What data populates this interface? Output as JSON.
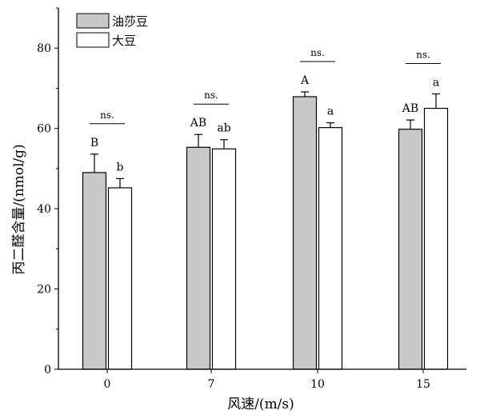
{
  "chart_data": {
    "type": "bar",
    "title": "",
    "xlabel": "风速/(m/s)",
    "ylabel": "丙二醛含量/(nmol/g)",
    "categories": [
      "0",
      "7",
      "10",
      "15"
    ],
    "ylim": [
      0,
      90
    ],
    "yticks": [
      0,
      20,
      40,
      60,
      80
    ],
    "grid": false,
    "legend_position": "top-left",
    "series": [
      {
        "name": "油莎豆",
        "color": "#c8c8c8",
        "values": [
          49.0,
          55.3,
          67.9,
          59.8
        ],
        "errors": [
          4.6,
          3.2,
          1.2,
          2.3
        ],
        "letters": [
          "B",
          "AB",
          "A",
          "AB"
        ]
      },
      {
        "name": "大豆",
        "color": "#ffffff",
        "values": [
          45.2,
          54.9,
          60.2,
          65.0
        ],
        "errors": [
          2.3,
          2.3,
          1.2,
          3.6
        ],
        "letters": [
          "b",
          "ab",
          "a",
          "a"
        ]
      }
    ],
    "comparisons": [
      "ns.",
      "ns.",
      "ns.",
      "ns."
    ]
  }
}
